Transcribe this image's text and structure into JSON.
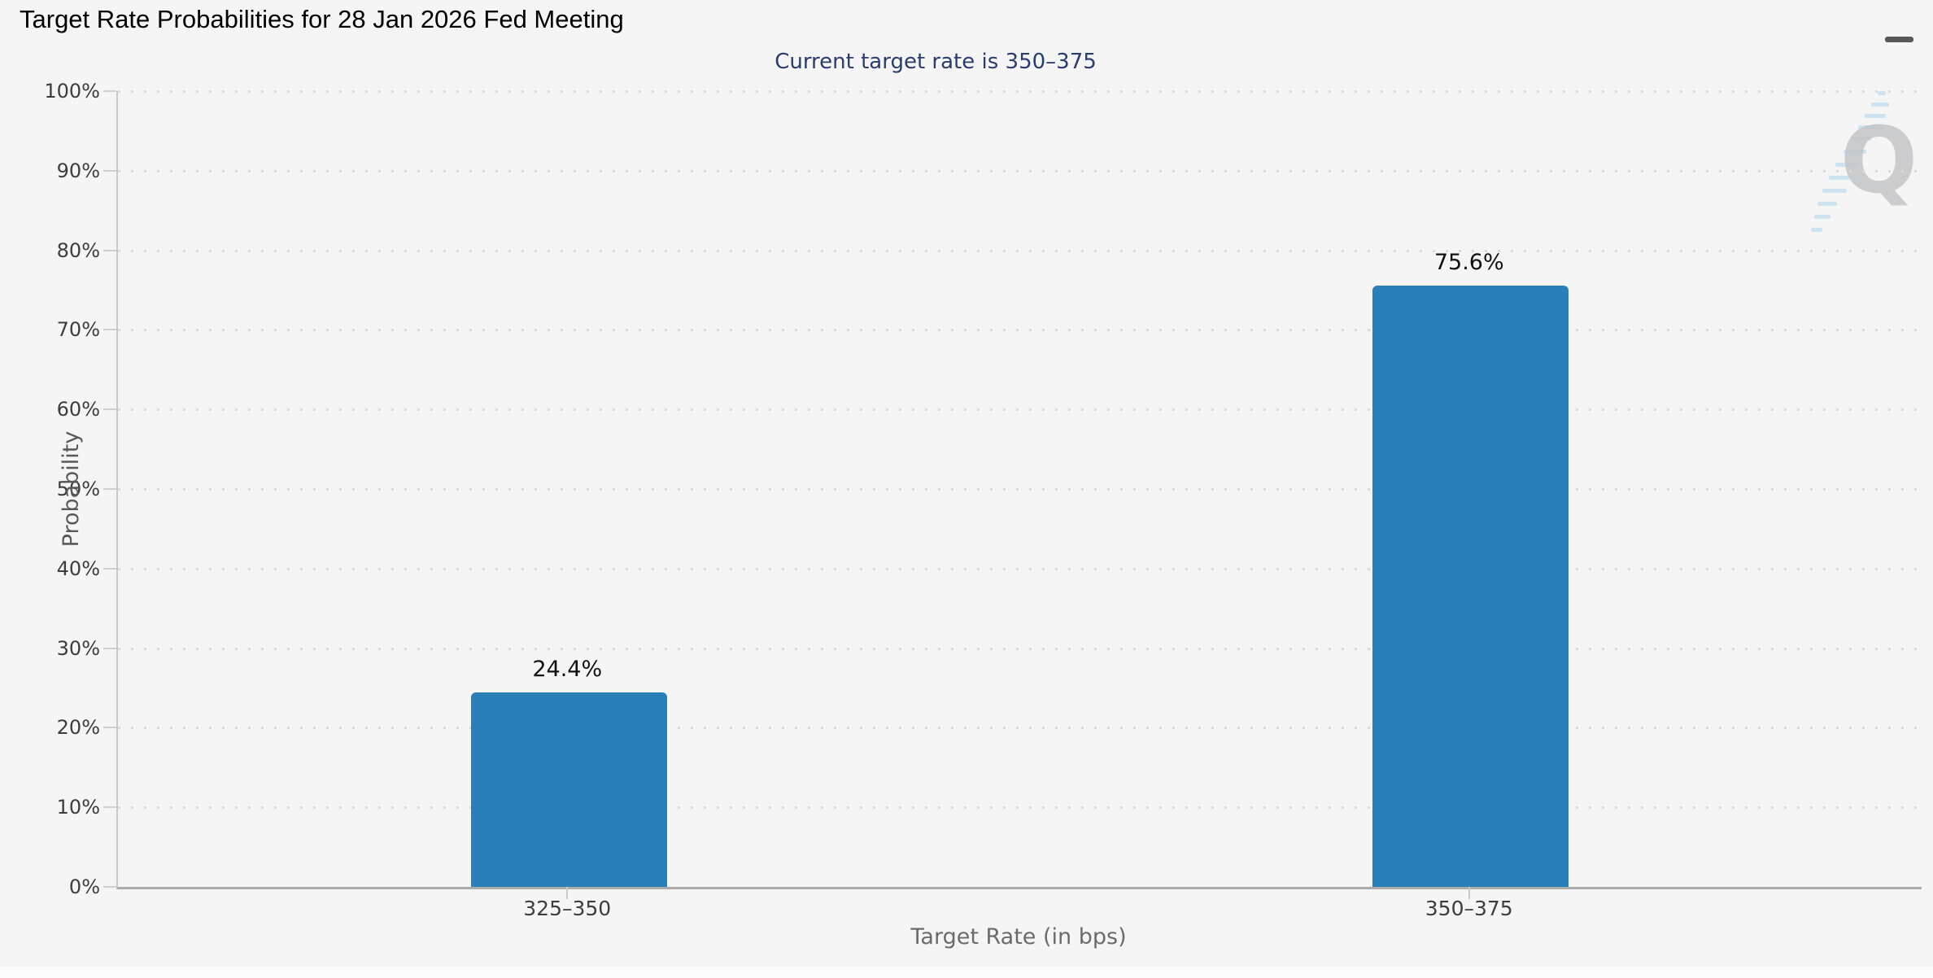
{
  "chart": {
    "title": "Target Rate Probabilities for 28 Jan 2026 Fed Meeting",
    "subtitle": "Current target rate is 350–375",
    "menu_icon": "hamburger-icon",
    "watermark_letter": "Q"
  },
  "chart_data": {
    "type": "bar",
    "title": "Target Rate Probabilities for 28 Jan 2026 Fed Meeting",
    "subtitle": "Current target rate is 350–375",
    "categories": [
      "325–350",
      "350–375"
    ],
    "values": [
      24.4,
      75.6
    ],
    "value_labels": [
      "24.4%",
      "75.6%"
    ],
    "xlabel": "Target Rate (in bps)",
    "ylabel": "Probability",
    "ylim": [
      0,
      100
    ],
    "ytick_step": 10,
    "ytick_suffix": "%",
    "legend": "none",
    "grid": "horizontal-dotted",
    "bar_color": "#2b7fb8",
    "subtitle_color": "#2b3d6b",
    "background_color": "#f5f5f6"
  }
}
